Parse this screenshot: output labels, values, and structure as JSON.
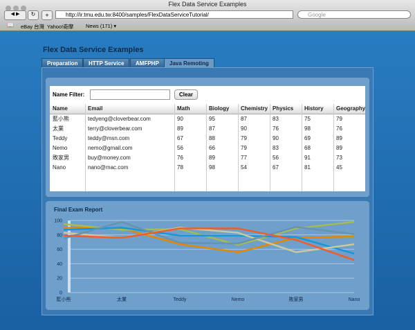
{
  "browser": {
    "window_title": "Flex Data Service Examples",
    "url": "http://ir.tmu.edu.tw:8400/samples/FlexDataServiceTutorial/",
    "search_placeholder": "Google",
    "bookmarks": [
      "eBay 台灣",
      "Yahoo!奇摩",
      "News (171) ▾"
    ]
  },
  "app": {
    "title": "Flex Data Service Examples",
    "tabs": [
      "Preparation",
      "HTTP Service",
      "AMFPHP",
      "Java Remoting"
    ],
    "filter_label": "Name Filter:",
    "clear_button": "Clear",
    "table": {
      "columns": [
        "Name",
        "Email",
        "Math",
        "Biology",
        "Chemistry",
        "Physics",
        "History",
        "Geography"
      ],
      "rows": [
        [
          "藍小熊",
          "tedyeng@cloverbear.com",
          90,
          95,
          87,
          83,
          75,
          79
        ],
        [
          "太業",
          "terry@cloverbear.com",
          89,
          87,
          90,
          76,
          98,
          76
        ],
        [
          "Teddy",
          "teddy@msn.com",
          67,
          88,
          79,
          90,
          69,
          89
        ],
        [
          "Nemo",
          "nemo@gmail.com",
          56,
          66,
          79,
          83,
          68,
          89
        ],
        [
          "敗家男",
          "buy@money.com",
          76,
          89,
          77,
          56,
          91,
          73
        ],
        [
          "Nano",
          "nano@mac.com",
          78,
          98,
          54,
          67,
          81,
          45
        ]
      ]
    },
    "chart": {
      "type": "line",
      "title": "Final Exam Report",
      "ylim": [
        0,
        100
      ],
      "yticks": [
        0,
        20,
        40,
        60,
        80,
        100
      ],
      "grid": true,
      "colors": [
        "#e48701",
        "#a5bc4e",
        "#1b95d9",
        "#caca9e",
        "#6693b0",
        "#f05e27"
      ]
    }
  }
}
